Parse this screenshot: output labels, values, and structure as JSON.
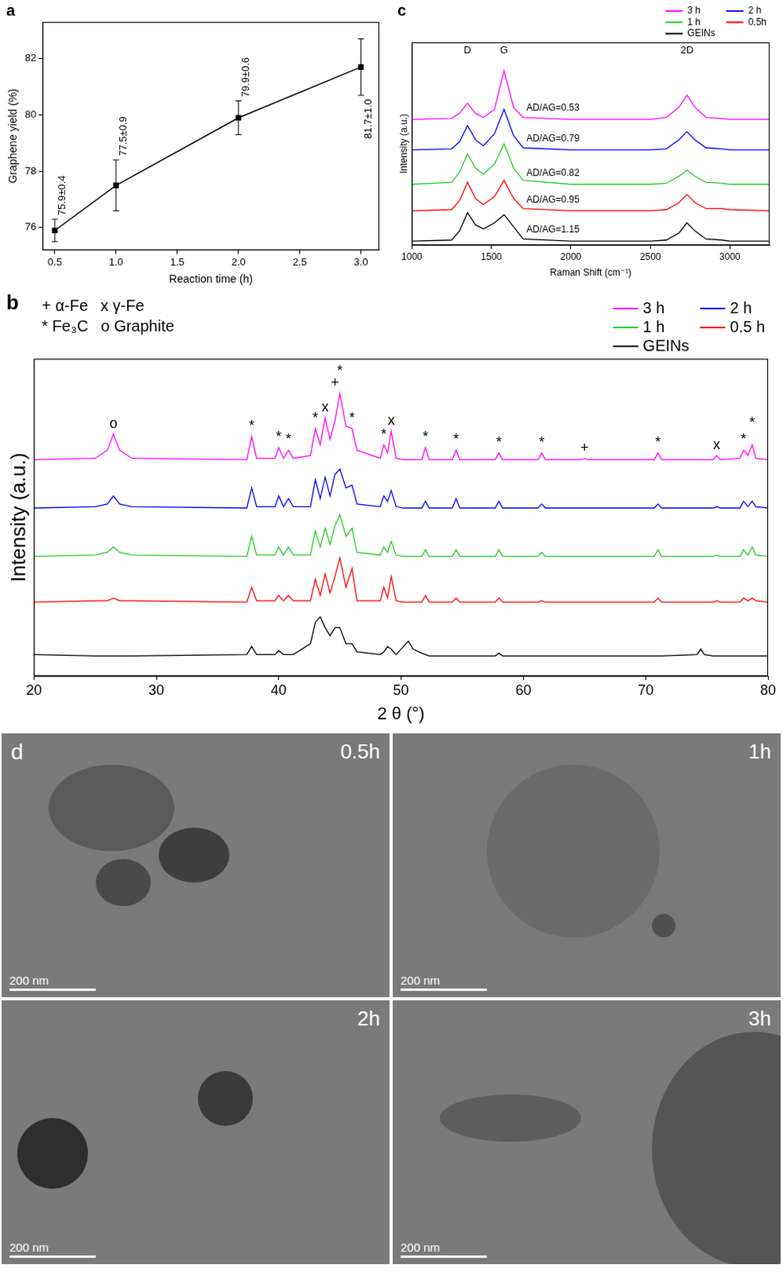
{
  "chart_data": [
    {
      "panel": "a",
      "type": "line",
      "x": [
        0.5,
        1,
        2,
        3
      ],
      "values": [
        75.9,
        77.5,
        79.9,
        81.7
      ],
      "error": [
        0.4,
        0.9,
        0.6,
        1.0
      ],
      "value_labels": [
        "75.9±0.4",
        "77.5±0.9",
        "79.9±0.6",
        "81.7±1.0"
      ],
      "data_labels": true,
      "color": "#000000",
      "marker": "square",
      "x_label": "Reaction time (h)",
      "y_label": "Graphene yield (%)",
      "xlim": [
        0.4,
        3.15
      ],
      "xticks": [
        0.5,
        {
          "value": 1,
          "label": "1.0"
        },
        1.5,
        {
          "value": 2,
          "label": "2.0"
        },
        2.5,
        {
          "value": 3,
          "label": "3.0"
        }
      ],
      "ylim": [
        75.2,
        83.3
      ],
      "yticks": [
        76,
        78,
        80,
        82
      ],
      "grid": false
    },
    {
      "panel": "b",
      "type": "line",
      "x": [
        20,
        25,
        26,
        26.5,
        27,
        28,
        37.4,
        37.8,
        38.2,
        39.7,
        40,
        40.4,
        40.8,
        41.2,
        42.6,
        43,
        43.4,
        43.8,
        44.2,
        44.6,
        45,
        45.5,
        46,
        46.4,
        48.3,
        48.6,
        48.9,
        49.2,
        49.6,
        50.2,
        50.6,
        51,
        51.7,
        52,
        52.3,
        54.2,
        54.5,
        54.8,
        57.7,
        58,
        58.3,
        61.2,
        61.5,
        61.8,
        64.7,
        65,
        65.3,
        70.7,
        71,
        71.3,
        74.2,
        74.5,
        74.8,
        75.5,
        75.8,
        76.1,
        77.7,
        78,
        78.35,
        78.7,
        79,
        80
      ],
      "series": [
        {
          "name": "3 h",
          "color": "#ff00ff",
          "values": [
            80.5,
            81,
            84,
            90,
            84,
            81,
            80.5,
            89,
            81,
            81,
            85,
            81,
            84,
            81,
            82,
            92,
            86,
            96,
            88,
            95,
            105,
            93,
            92,
            84,
            81,
            86,
            83,
            91,
            81,
            80.5,
            80.5,
            80.5,
            80.5,
            85,
            80.5,
            80.5,
            84,
            80.5,
            80.5,
            83,
            80.5,
            80.5,
            83,
            80.5,
            80.5,
            81,
            80.5,
            80.5,
            83,
            80.5,
            80.5,
            80.5,
            80.5,
            80.5,
            82,
            80.5,
            81,
            84,
            82,
            86,
            81,
            80.5
          ]
        },
        {
          "name": "2 h",
          "color": "#0000ff",
          "values": [
            62.5,
            63,
            64,
            67,
            64,
            63,
            62.5,
            70,
            63,
            63,
            67,
            63,
            66,
            63,
            63,
            73,
            66,
            74,
            67,
            75,
            77,
            70,
            71,
            64,
            63,
            67,
            65,
            69,
            63,
            62.5,
            62.5,
            62.5,
            62.5,
            65,
            62.5,
            62.5,
            66,
            62.5,
            62.5,
            65,
            62.5,
            62.5,
            64,
            62.5,
            62.5,
            62.5,
            62.5,
            62.5,
            64,
            62.5,
            62.5,
            62.5,
            62.5,
            62.5,
            63,
            62.5,
            62.5,
            65,
            63,
            65,
            63,
            62.5
          ]
        },
        {
          "name": "1 h",
          "color": "#22cc22",
          "values": [
            44.5,
            45,
            46,
            48,
            46,
            45,
            44.5,
            52,
            45,
            45,
            48,
            45,
            48,
            45,
            45,
            54,
            48,
            55,
            49,
            56,
            60,
            52,
            55,
            46,
            45,
            48,
            46,
            50,
            45,
            44.5,
            44.5,
            44.5,
            44.5,
            47,
            44.5,
            44.5,
            47,
            44.5,
            44.5,
            47,
            44.5,
            44.5,
            46,
            44.5,
            44.5,
            44.5,
            44.5,
            44.5,
            47,
            44.5,
            44.5,
            44.5,
            44.5,
            44.5,
            45,
            44.5,
            44.5,
            47,
            45,
            48,
            45,
            44.5
          ]
        },
        {
          "name": "0.5 h",
          "color": "#ff0000",
          "values": [
            27.5,
            28,
            28,
            29,
            28,
            28,
            27.5,
            33,
            28,
            28,
            30,
            28,
            30,
            28,
            28,
            36,
            30,
            38,
            31,
            37,
            44,
            33,
            40,
            28,
            28,
            33,
            29,
            37,
            28,
            27.5,
            27.5,
            27.5,
            27.5,
            30,
            27.5,
            27.5,
            29,
            27.5,
            27.5,
            29,
            27.5,
            27.5,
            28,
            27.5,
            27.5,
            27.5,
            27.5,
            27.5,
            29,
            27.5,
            27.5,
            27.5,
            27.5,
            27.5,
            28,
            27.5,
            27.5,
            29,
            28,
            29,
            28,
            27.5
          ]
        },
        {
          "name": "GEINs",
          "color": "#000000",
          "values": [
            8,
            7.5,
            7.5,
            7.5,
            7.5,
            7.5,
            8,
            11,
            8,
            8,
            9.5,
            8,
            8,
            8,
            12,
            20,
            22,
            18,
            15,
            18,
            18,
            12,
            12,
            9,
            8,
            9,
            11,
            10,
            8,
            11,
            13,
            10,
            8.5,
            8,
            7.5,
            7.5,
            7.5,
            7.5,
            7.5,
            8.5,
            7.5,
            7.5,
            7.5,
            7.5,
            7.5,
            7.5,
            7.5,
            7.5,
            7.5,
            7.5,
            8,
            10,
            8,
            7.5,
            7.5,
            7.5,
            7.5,
            7.5,
            7.5,
            7.5,
            7.5,
            7.5
          ]
        }
      ],
      "x_label": "2 θ (°)",
      "y_label": "Intensity (a.u.)",
      "xlim": [
        20,
        80
      ],
      "xticks": [
        20,
        30,
        40,
        50,
        60,
        70,
        80
      ],
      "ylim": [
        0,
        118
      ],
      "yticks": [],
      "tick_labels": "x",
      "grid": false,
      "legend": "top right",
      "phase_key": [
        {
          "symbol": "+",
          "name": "α-Fe"
        },
        {
          "symbol": "x",
          "name": "γ-Fe"
        },
        {
          "symbol": "*",
          "name": "Fe₃C"
        },
        {
          "symbol": "o",
          "name": "Graphite"
        }
      ],
      "peak_markers": [
        {
          "x": 26.5,
          "symbol": "o"
        },
        {
          "x": 37.8,
          "symbol": "*"
        },
        {
          "x": 40,
          "symbol": "*"
        },
        {
          "x": 40.8,
          "symbol": "*"
        },
        {
          "x": 43,
          "symbol": "*"
        },
        {
          "x": 43.8,
          "symbol": "x"
        },
        {
          "x": 44.6,
          "symbol": "+"
        },
        {
          "x": 45,
          "symbol": "*"
        },
        {
          "x": 46,
          "symbol": "*"
        },
        {
          "x": 48.6,
          "symbol": "*"
        },
        {
          "x": 49.2,
          "symbol": "x"
        },
        {
          "x": 52,
          "symbol": "*"
        },
        {
          "x": 54.5,
          "symbol": "*"
        },
        {
          "x": 58,
          "symbol": "*"
        },
        {
          "x": 61.5,
          "symbol": "*"
        },
        {
          "x": 65,
          "symbol": "+"
        },
        {
          "x": 71,
          "symbol": "*"
        },
        {
          "x": 75.8,
          "symbol": "x"
        },
        {
          "x": 78,
          "symbol": "*"
        },
        {
          "x": 78.7,
          "symbol": "*"
        }
      ]
    },
    {
      "panel": "c",
      "type": "line",
      "x": [
        1000,
        1250,
        1300,
        1350,
        1400,
        1450,
        1520,
        1580,
        1640,
        1700,
        2000,
        2500,
        2600,
        2680,
        2730,
        2780,
        2850,
        2950,
        3000,
        3250
      ],
      "series": [
        {
          "name": "3 h",
          "color": "#ff00ff",
          "annotation": "AD/AG=0.53",
          "values": [
            62,
            62.5,
            65,
            70,
            65,
            63,
            67,
            86,
            68,
            63,
            62,
            62,
            63,
            68,
            74,
            68,
            63,
            62.5,
            62,
            62
          ]
        },
        {
          "name": "2 h",
          "color": "#0000ff",
          "annotation": "AD/AG=0.79",
          "values": [
            47,
            47.5,
            51,
            59,
            52,
            49,
            55,
            67,
            54,
            48,
            47,
            47,
            47.5,
            52,
            56,
            52,
            48,
            47.5,
            47,
            47
          ]
        },
        {
          "name": "1 h",
          "color": "#22cc22",
          "annotation": "AD/AG=0.82",
          "values": [
            30,
            31,
            36,
            45,
            38,
            35,
            40,
            50,
            38,
            32,
            30,
            30,
            30.5,
            34,
            37,
            34,
            31,
            30.5,
            30,
            30
          ]
        },
        {
          "name": "0.5h",
          "color": "#ff0000",
          "annotation": "AD/AG=0.95",
          "values": [
            17,
            17.5,
            22,
            31,
            23,
            20,
            24,
            32,
            23,
            18,
            17,
            17,
            17.5,
            21,
            25,
            21,
            18,
            18,
            17.5,
            17
          ]
        },
        {
          "name": "GEINs",
          "color": "#000000",
          "annotation": "AD/AG=1.15",
          "values": [
            2,
            2.5,
            7,
            16,
            10,
            8,
            11,
            15,
            9,
            3,
            2,
            2,
            2.5,
            6,
            11,
            7,
            3,
            2.5,
            2,
            2
          ]
        }
      ],
      "x_label": "Raman Shift (cm⁻¹)",
      "y_label": "Intensity (a.u.)",
      "xlim": [
        1000,
        3250
      ],
      "xticks": [
        1000,
        1500,
        2000,
        2500,
        3000
      ],
      "ylim": [
        0,
        100
      ],
      "yticks": [],
      "tick_labels": "x",
      "grid": false,
      "legend": "top right",
      "peak_labels": [
        {
          "x": 1350,
          "text": "D"
        },
        {
          "x": 1580,
          "text": "G"
        },
        {
          "x": 2730,
          "text": "2D"
        }
      ]
    }
  ],
  "images": {
    "panel": "d",
    "items": [
      {
        "label": "0.5h",
        "scale_bar": "200 nm"
      },
      {
        "label": "1h",
        "scale_bar": "200 nm"
      },
      {
        "label": "2h",
        "scale_bar": "200 nm"
      },
      {
        "label": "3h",
        "scale_bar": "200 nm"
      }
    ]
  }
}
